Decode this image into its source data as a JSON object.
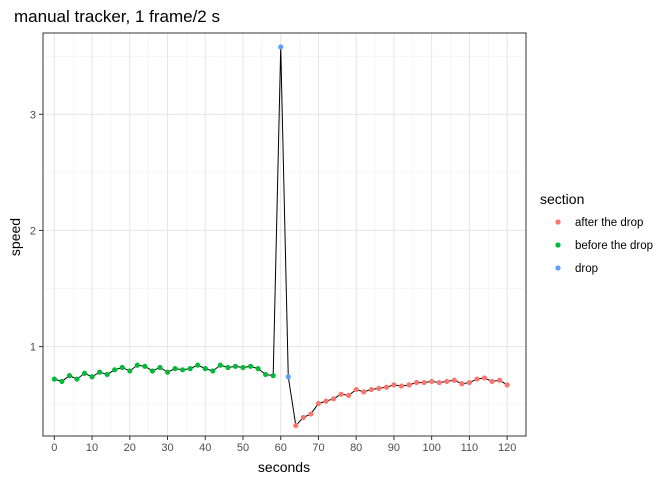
{
  "chart_data": {
    "type": "line",
    "title": "manual tracker, 1 frame/2 s",
    "xlabel": "seconds",
    "ylabel": "speed",
    "xlim": [
      -3,
      125
    ],
    "ylim": [
      0.23,
      3.7
    ],
    "x_ticks": [
      0,
      10,
      20,
      30,
      40,
      50,
      60,
      70,
      80,
      90,
      100,
      110,
      120
    ],
    "y_ticks": [
      1,
      2,
      3
    ],
    "grid": true,
    "legend": {
      "title": "section",
      "placement": "right"
    },
    "line_color": "#000000",
    "series": [
      {
        "name": "after the drop",
        "color": "#F8766D",
        "x": [
          64,
          66,
          68,
          70,
          72,
          74,
          76,
          78,
          80,
          82,
          84,
          86,
          88,
          90,
          92,
          94,
          96,
          98,
          100,
          102,
          104,
          106,
          108,
          110,
          112,
          114,
          116,
          118,
          120
        ],
        "y": [
          0.32,
          0.39,
          0.42,
          0.51,
          0.53,
          0.55,
          0.59,
          0.58,
          0.63,
          0.61,
          0.63,
          0.64,
          0.65,
          0.67,
          0.66,
          0.67,
          0.69,
          0.69,
          0.7,
          0.69,
          0.7,
          0.71,
          0.68,
          0.69,
          0.72,
          0.73,
          0.7,
          0.71,
          0.67
        ]
      },
      {
        "name": "before the drop",
        "color": "#00BA38",
        "x": [
          0,
          2,
          4,
          6,
          8,
          10,
          12,
          14,
          16,
          18,
          20,
          22,
          24,
          26,
          28,
          30,
          32,
          34,
          36,
          38,
          40,
          42,
          44,
          46,
          48,
          50,
          52,
          54,
          56,
          58
        ],
        "y": [
          0.72,
          0.7,
          0.75,
          0.72,
          0.77,
          0.74,
          0.78,
          0.76,
          0.8,
          0.82,
          0.79,
          0.84,
          0.83,
          0.79,
          0.82,
          0.78,
          0.81,
          0.8,
          0.81,
          0.84,
          0.81,
          0.79,
          0.84,
          0.82,
          0.83,
          0.82,
          0.83,
          0.81,
          0.76,
          0.75
        ]
      },
      {
        "name": "drop",
        "color": "#619CFF",
        "x": [
          60,
          62
        ],
        "y": [
          3.58,
          0.74
        ]
      }
    ]
  }
}
